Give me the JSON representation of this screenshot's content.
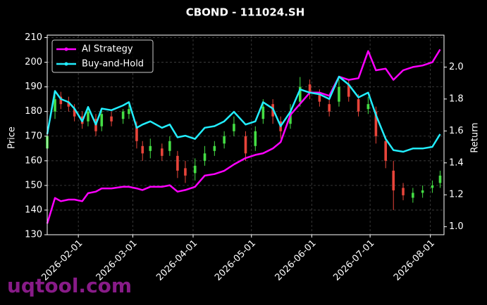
{
  "chart_data": {
    "type": "candlestick",
    "title": "CBOND - 111024.SH",
    "y_label": "Price",
    "y2_label": "Return",
    "watermark": "uqtool.com",
    "grid": true,
    "legend": "upper left",
    "xlim": [
      "2026-01-16",
      "2026-08-08"
    ],
    "xticks": [
      "2026-02-01",
      "2026-03-01",
      "2026-04-01",
      "2026-05-01",
      "2026-06-01",
      "2026-07-01",
      "2026-08-01"
    ],
    "ylim": [
      130,
      211
    ],
    "yticks": [
      130,
      140,
      150,
      160,
      170,
      180,
      190,
      200,
      210
    ],
    "y2lim": [
      0.95,
      2.2
    ],
    "y2ticks": [
      {
        "value": 1,
        "label": "1.0"
      },
      1.2,
      1.4,
      1.6,
      1.8,
      {
        "value": 2,
        "label": "2.0"
      }
    ],
    "up_color": "#44dd44",
    "down_color": "#e8443a",
    "x": [
      "2026-01-16",
      "2026-01-20",
      "2026-01-23",
      "2026-01-27",
      "2026-01-30",
      "2026-02-03",
      "2026-02-06",
      "2026-02-10",
      "2026-02-13",
      "2026-02-18",
      "2026-02-24",
      "2026-02-27",
      "2026-03-03",
      "2026-03-06",
      "2026-03-10",
      "2026-03-16",
      "2026-03-20",
      "2026-03-24",
      "2026-03-28",
      "2026-04-02",
      "2026-04-07",
      "2026-04-12",
      "2026-04-17",
      "2026-04-22",
      "2026-04-28",
      "2026-05-03",
      "2026-05-07",
      "2026-05-12",
      "2026-05-16",
      "2026-05-21",
      "2026-05-26",
      "2026-05-31",
      "2026-06-05",
      "2026-06-10",
      "2026-06-15",
      "2026-06-20",
      "2026-06-25",
      "2026-06-30",
      "2026-07-04",
      "2026-07-09",
      "2026-07-13",
      "2026-07-18",
      "2026-07-23",
      "2026-07-28",
      "2026-08-02",
      "2026-08-06"
    ],
    "open": [
      165,
      180,
      186,
      184,
      181,
      178,
      176,
      177,
      174,
      178,
      177,
      179,
      174,
      166,
      164,
      165,
      164,
      162,
      157,
      155,
      160,
      164,
      167,
      172,
      170,
      166,
      177,
      183,
      176,
      175,
      184,
      191,
      187,
      183,
      184,
      191,
      185,
      181,
      180,
      168,
      156,
      149,
      145,
      147,
      149,
      151
    ],
    "high": [
      172,
      188,
      188,
      186,
      183,
      180,
      182,
      179,
      181,
      180,
      181,
      183,
      176,
      168,
      169,
      167,
      170,
      164,
      160,
      161,
      166,
      168,
      172,
      178,
      172,
      174,
      185,
      185,
      178,
      183,
      194,
      193,
      189,
      185,
      193,
      193,
      187,
      186,
      182,
      170,
      160,
      151,
      149,
      150,
      152,
      156
    ],
    "low": [
      162,
      177,
      181,
      180,
      176,
      173,
      174,
      170,
      172,
      174,
      175,
      177,
      165,
      160,
      161,
      160,
      162,
      153,
      151,
      152,
      158,
      162,
      165,
      170,
      160,
      164,
      175,
      175,
      169,
      173,
      182,
      185,
      182,
      178,
      182,
      184,
      178,
      179,
      167,
      157,
      140,
      144,
      143,
      145,
      147,
      149
    ],
    "close": [
      170,
      185,
      183,
      182,
      178,
      175,
      180,
      172,
      179,
      176,
      180,
      181,
      168,
      163,
      166,
      162,
      168,
      156,
      154,
      158,
      163,
      166,
      170,
      175,
      163,
      172,
      182,
      178,
      172,
      180,
      190,
      188,
      184,
      180,
      190,
      186,
      180,
      183,
      170,
      160,
      148,
      146,
      147,
      148,
      150,
      154
    ],
    "series": [
      {
        "name": "AI Strategy",
        "color": "#ff00ff",
        "axis": "y2",
        "values": [
          1.02,
          1.18,
          1.16,
          1.17,
          1.17,
          1.16,
          1.21,
          1.22,
          1.24,
          1.24,
          1.25,
          1.25,
          1.24,
          1.23,
          1.25,
          1.25,
          1.26,
          1.22,
          1.23,
          1.25,
          1.32,
          1.33,
          1.35,
          1.39,
          1.43,
          1.45,
          1.46,
          1.49,
          1.53,
          1.7,
          1.77,
          1.84,
          1.84,
          1.82,
          1.94,
          1.92,
          1.93,
          2.1,
          1.98,
          1.99,
          1.92,
          1.98,
          2.0,
          2.01,
          2.03,
          2.11
        ]
      },
      {
        "name": "Buy-and-Hold",
        "color": "#22eeff",
        "axis": "y2",
        "values": [
          1.58,
          1.85,
          1.8,
          1.78,
          1.74,
          1.66,
          1.75,
          1.64,
          1.74,
          1.73,
          1.76,
          1.78,
          1.62,
          1.64,
          1.66,
          1.62,
          1.64,
          1.56,
          1.57,
          1.55,
          1.62,
          1.63,
          1.66,
          1.72,
          1.64,
          1.66,
          1.78,
          1.74,
          1.63,
          1.72,
          1.86,
          1.84,
          1.83,
          1.8,
          1.94,
          1.89,
          1.81,
          1.84,
          1.7,
          1.55,
          1.48,
          1.47,
          1.49,
          1.49,
          1.5,
          1.58
        ]
      }
    ]
  }
}
